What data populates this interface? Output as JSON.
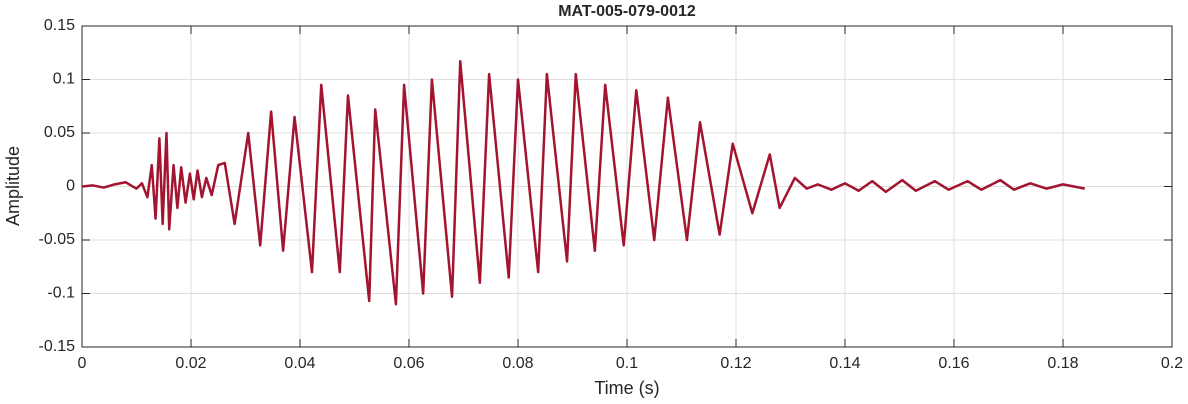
{
  "chart_data": {
    "type": "line",
    "title": "MAT-005-079-0012",
    "x_label": "Time (s)",
    "y_label": "Amplitude",
    "x": [
      0,
      0.002,
      0.004,
      0.006,
      0.008,
      0.01,
      0.011,
      0.012,
      0.0128,
      0.0135,
      0.0142,
      0.0148,
      0.0155,
      0.016,
      0.0168,
      0.0175,
      0.0182,
      0.019,
      0.0198,
      0.0205,
      0.0212,
      0.022,
      0.0228,
      0.0238,
      0.025,
      0.0262,
      0.028,
      0.0305,
      0.0327,
      0.0347,
      0.0369,
      0.039,
      0.0422,
      0.0439,
      0.0473,
      0.0488,
      0.0527,
      0.0538,
      0.0576,
      0.0591,
      0.0626,
      0.0642,
      0.0679,
      0.0694,
      0.073,
      0.0747,
      0.0783,
      0.08,
      0.0837,
      0.0853,
      0.089,
      0.0906,
      0.0941,
      0.096,
      0.0994,
      0.1017,
      0.105,
      0.1075,
      0.111,
      0.1134,
      0.117,
      0.1194,
      0.123,
      0.1262,
      0.128,
      0.1308,
      0.133,
      0.135,
      0.1375,
      0.14,
      0.1425,
      0.145,
      0.1475,
      0.1505,
      0.153,
      0.1565,
      0.159,
      0.1625,
      0.165,
      0.1685,
      0.171,
      0.174,
      0.177,
      0.18,
      0.184
    ],
    "series": [
      {
        "name": "Amplitude",
        "color": "#a2142f",
        "values": [
          0,
          0.001,
          -0.001,
          0.002,
          0.004,
          -0.002,
          0.003,
          -0.01,
          0.02,
          -0.03,
          0.045,
          -0.035,
          0.05,
          -0.04,
          0.02,
          -0.02,
          0.018,
          -0.015,
          0.012,
          -0.012,
          0.015,
          -0.01,
          0.008,
          -0.008,
          0.02,
          0.022,
          -0.035,
          0.05,
          -0.055,
          0.07,
          -0.06,
          0.065,
          -0.08,
          0.095,
          -0.08,
          0.085,
          -0.107,
          0.072,
          -0.11,
          0.095,
          -0.1,
          0.1,
          -0.103,
          0.117,
          -0.09,
          0.105,
          -0.085,
          0.1,
          -0.08,
          0.105,
          -0.07,
          0.105,
          -0.06,
          0.095,
          -0.055,
          0.09,
          -0.05,
          0.083,
          -0.05,
          0.06,
          -0.045,
          0.04,
          -0.025,
          0.03,
          -0.02,
          0.008,
          -0.002,
          0.002,
          -0.003,
          0.003,
          -0.004,
          0.005,
          -0.005,
          0.006,
          -0.004,
          0.005,
          -0.003,
          0.005,
          -0.003,
          0.006,
          -0.003,
          0.003,
          -0.002,
          0.002,
          -0.002
        ]
      }
    ],
    "xlim": [
      0,
      0.2
    ],
    "xticks": [
      0,
      0.02,
      0.04,
      0.06,
      0.08,
      0.1,
      0.12,
      0.14,
      0.16,
      0.18,
      0.2
    ],
    "ylim": [
      -0.15,
      0.15
    ],
    "yticks": [
      -0.15,
      -0.1,
      -0.05,
      0,
      0.05,
      0.1,
      0.15
    ],
    "grid": true
  }
}
